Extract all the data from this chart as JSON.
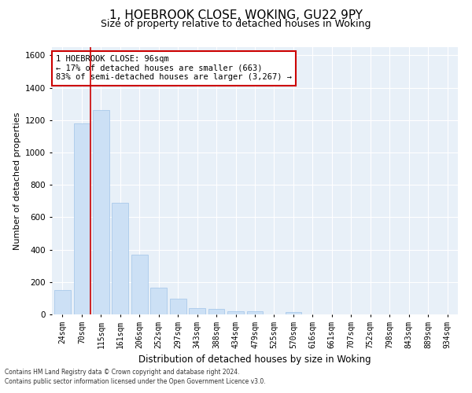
{
  "title1": "1, HOEBROOK CLOSE, WOKING, GU22 9PY",
  "title2": "Size of property relative to detached houses in Woking",
  "xlabel": "Distribution of detached houses by size in Woking",
  "ylabel": "Number of detached properties",
  "categories": [
    "24sqm",
    "70sqm",
    "115sqm",
    "161sqm",
    "206sqm",
    "252sqm",
    "297sqm",
    "343sqm",
    "388sqm",
    "434sqm",
    "479sqm",
    "525sqm",
    "570sqm",
    "616sqm",
    "661sqm",
    "707sqm",
    "752sqm",
    "798sqm",
    "843sqm",
    "889sqm",
    "934sqm"
  ],
  "values": [
    150,
    1180,
    1260,
    690,
    370,
    165,
    95,
    40,
    35,
    20,
    20,
    0,
    15,
    0,
    0,
    0,
    0,
    0,
    0,
    0,
    0
  ],
  "bar_color": "#cce0f5",
  "bar_edge_color": "#a0c4e8",
  "vline_color": "#cc0000",
  "vline_x": 1.45,
  "ylim": [
    0,
    1650
  ],
  "yticks": [
    0,
    200,
    400,
    600,
    800,
    1000,
    1200,
    1400,
    1600
  ],
  "annotation_text": "1 HOEBROOK CLOSE: 96sqm\n← 17% of detached houses are smaller (663)\n83% of semi-detached houses are larger (3,267) →",
  "annotation_box_color": "#ffffff",
  "annotation_box_edge": "#cc0000",
  "footer1": "Contains HM Land Registry data © Crown copyright and database right 2024.",
  "footer2": "Contains public sector information licensed under the Open Government Licence v3.0.",
  "bg_color": "#e8f0f8",
  "title1_fontsize": 11,
  "title2_fontsize": 9,
  "xlabel_fontsize": 8.5,
  "ylabel_fontsize": 8,
  "tick_fontsize": 7,
  "ann_fontsize": 7.5,
  "footer_fontsize": 5.5
}
